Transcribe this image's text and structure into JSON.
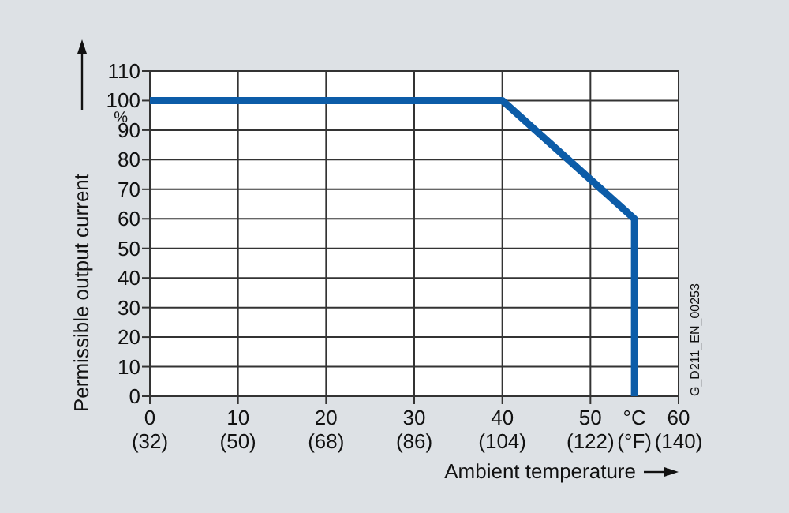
{
  "chart_data": {
    "type": "line",
    "xlabel": "Ambient temperature",
    "ylabel": "Permissible output current",
    "x": [
      0,
      40,
      55,
      55
    ],
    "series": [
      {
        "color": "#0c5ca8",
        "values": [
          100,
          100,
          60,
          0
        ]
      }
    ],
    "xlim": [
      0,
      60
    ],
    "ylim": [
      0,
      110
    ],
    "xticks": [
      0,
      10,
      20,
      30,
      40,
      50,
      60
    ],
    "x2lim": [
      32,
      140
    ],
    "x2ticks": [
      {
        "value": 32,
        "label": "(32)"
      },
      {
        "value": 50,
        "label": "(50)"
      },
      {
        "value": 68,
        "label": "(68)"
      },
      {
        "value": 86,
        "label": "(86)"
      },
      {
        "value": 104,
        "label": "(104)"
      },
      {
        "value": 122,
        "label": "(122)"
      },
      {
        "value": 140,
        "label": "(140)"
      }
    ],
    "yticks": [
      0,
      10,
      20,
      30,
      40,
      50,
      60,
      70,
      80,
      90,
      100,
      110
    ],
    "grid": true,
    "line_style": "solid",
    "annotations": [
      "°C\n(°F)",
      "%",
      "G_D211_EN_00253"
    ]
  }
}
